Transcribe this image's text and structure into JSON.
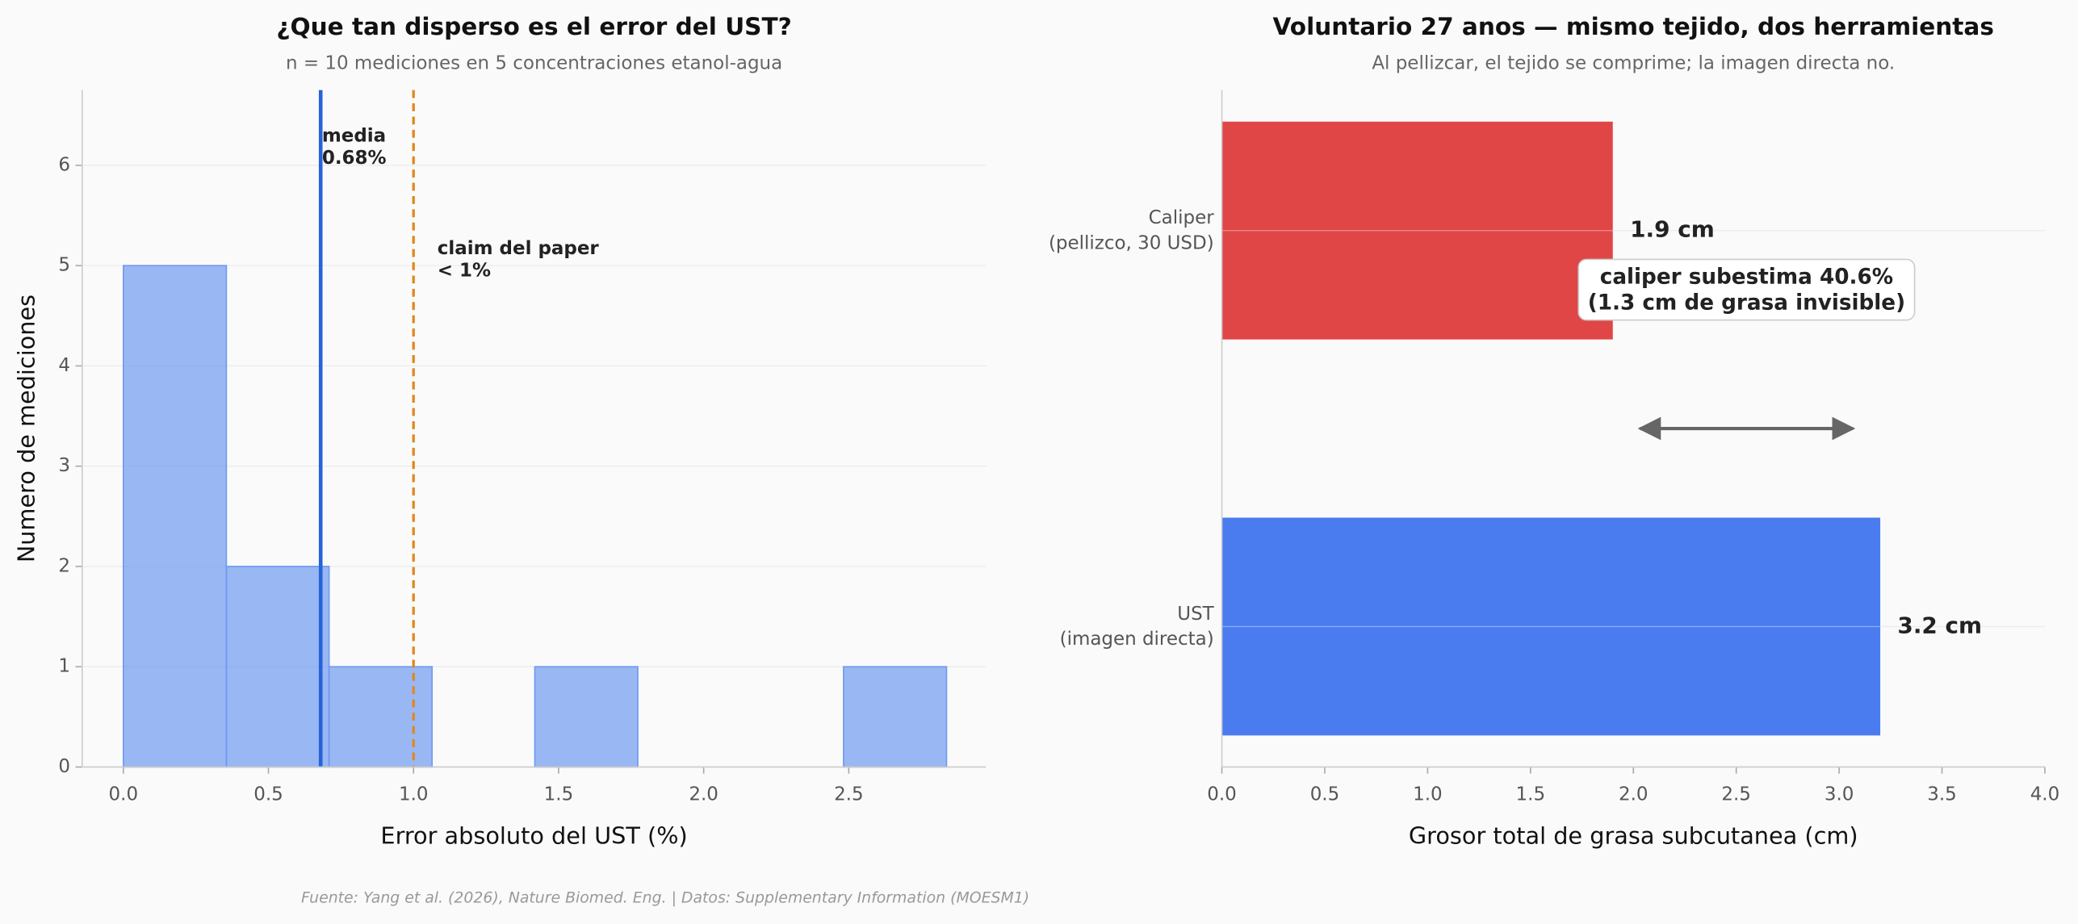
{
  "chart_data": [
    {
      "type": "histogram",
      "title": "¿Que tan disperso es el error del UST?",
      "subtitle": "n = 10 mediciones en 5 concentraciones etanol-agua",
      "x_label": "Error absoluto del UST (%)",
      "y_label": "Numero de mediciones",
      "bins": [
        0,
        0.355,
        0.709,
        1.064,
        1.418,
        1.773,
        2.128,
        2.482,
        2.837
      ],
      "counts": [
        5,
        2,
        1,
        0,
        1,
        0,
        0,
        1
      ],
      "color": "#6f9af0",
      "xlim": [
        -0.142,
        2.973
      ],
      "xticks": [
        {
          "value": 0,
          "label": "0.0"
        },
        0.5,
        {
          "value": 1,
          "label": "1.0"
        },
        1.5,
        {
          "value": 2,
          "label": "2.0"
        },
        2.5
      ],
      "ylim": [
        0,
        6.75
      ],
      "yticks": [
        0,
        1,
        2,
        3,
        4,
        5,
        6
      ],
      "grid": true,
      "vlines": [
        {
          "value": 0.68,
          "color": "#2563d9",
          "style": "solid",
          "label": "media\n0.68%"
        },
        {
          "value": 1.0,
          "color": "#e0881e",
          "style": "dashed",
          "label": "claim del paper\n< 1%"
        }
      ]
    },
    {
      "type": "hbar",
      "title": "Voluntario 27 anos — mismo tejido, dos herramientas",
      "subtitle": "Al pellizcar, el tejido se comprime; la imagen directa no.",
      "x_label": "Grosor total de grasa subcutanea (cm)",
      "categories": [
        "Caliper\n(pellizco, 30 USD)",
        "UST\n(imagen directa)"
      ],
      "values": [
        1.9,
        3.2
      ],
      "value_labels": [
        "1.9 cm",
        "3.2 cm"
      ],
      "colors": [
        "#e04646",
        "#4a7cf0"
      ],
      "value_label_colors": [
        "#d62828",
        "#2256d8"
      ],
      "xlim": [
        0,
        4
      ],
      "xticks": [
        {
          "value": 0,
          "label": "0.0"
        },
        0.5,
        {
          "value": 1,
          "label": "1.0"
        },
        1.5,
        {
          "value": 2,
          "label": "2.0"
        },
        2.5,
        {
          "value": 3,
          "label": "3.0"
        },
        3.5,
        {
          "value": 4,
          "label": "4.0"
        }
      ],
      "grid": true,
      "arrow": [
        1.9,
        3.2
      ],
      "annotation": "caliper subestima 40.6%\n(1.3 cm de grasa invisible)"
    }
  ],
  "footer": "Fuente: Yang et al. (2026), Nature Biomed. Eng. | Datos: Supplementary Information (MOESM1)"
}
